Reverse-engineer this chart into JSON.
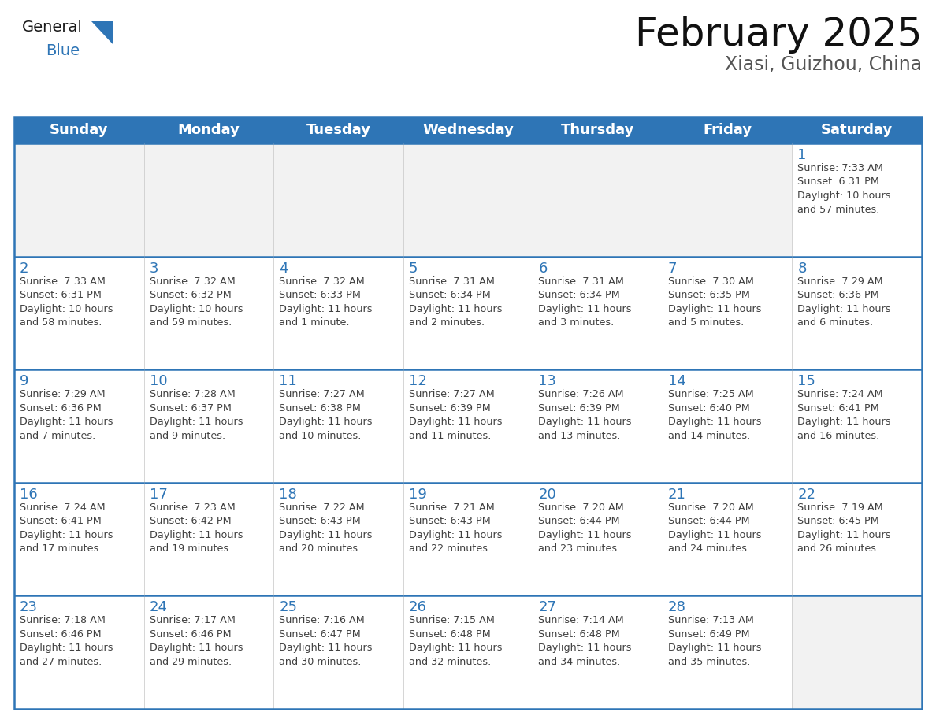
{
  "title": "February 2025",
  "subtitle": "Xiasi, Guizhou, China",
  "header_color": "#2E75B6",
  "header_text_color": "#FFFFFF",
  "cell_bg_color": "#FFFFFF",
  "cell_empty_bg": "#F2F2F2",
  "border_color": "#2E75B6",
  "day_number_color": "#2E75B6",
  "cell_text_color": "#404040",
  "background_color": "#FFFFFF",
  "days_of_week": [
    "Sunday",
    "Monday",
    "Tuesday",
    "Wednesday",
    "Thursday",
    "Friday",
    "Saturday"
  ],
  "weeks": [
    [
      {
        "day": "",
        "info": ""
      },
      {
        "day": "",
        "info": ""
      },
      {
        "day": "",
        "info": ""
      },
      {
        "day": "",
        "info": ""
      },
      {
        "day": "",
        "info": ""
      },
      {
        "day": "",
        "info": ""
      },
      {
        "day": "1",
        "info": "Sunrise: 7:33 AM\nSunset: 6:31 PM\nDaylight: 10 hours\nand 57 minutes."
      }
    ],
    [
      {
        "day": "2",
        "info": "Sunrise: 7:33 AM\nSunset: 6:31 PM\nDaylight: 10 hours\nand 58 minutes."
      },
      {
        "day": "3",
        "info": "Sunrise: 7:32 AM\nSunset: 6:32 PM\nDaylight: 10 hours\nand 59 minutes."
      },
      {
        "day": "4",
        "info": "Sunrise: 7:32 AM\nSunset: 6:33 PM\nDaylight: 11 hours\nand 1 minute."
      },
      {
        "day": "5",
        "info": "Sunrise: 7:31 AM\nSunset: 6:34 PM\nDaylight: 11 hours\nand 2 minutes."
      },
      {
        "day": "6",
        "info": "Sunrise: 7:31 AM\nSunset: 6:34 PM\nDaylight: 11 hours\nand 3 minutes."
      },
      {
        "day": "7",
        "info": "Sunrise: 7:30 AM\nSunset: 6:35 PM\nDaylight: 11 hours\nand 5 minutes."
      },
      {
        "day": "8",
        "info": "Sunrise: 7:29 AM\nSunset: 6:36 PM\nDaylight: 11 hours\nand 6 minutes."
      }
    ],
    [
      {
        "day": "9",
        "info": "Sunrise: 7:29 AM\nSunset: 6:36 PM\nDaylight: 11 hours\nand 7 minutes."
      },
      {
        "day": "10",
        "info": "Sunrise: 7:28 AM\nSunset: 6:37 PM\nDaylight: 11 hours\nand 9 minutes."
      },
      {
        "day": "11",
        "info": "Sunrise: 7:27 AM\nSunset: 6:38 PM\nDaylight: 11 hours\nand 10 minutes."
      },
      {
        "day": "12",
        "info": "Sunrise: 7:27 AM\nSunset: 6:39 PM\nDaylight: 11 hours\nand 11 minutes."
      },
      {
        "day": "13",
        "info": "Sunrise: 7:26 AM\nSunset: 6:39 PM\nDaylight: 11 hours\nand 13 minutes."
      },
      {
        "day": "14",
        "info": "Sunrise: 7:25 AM\nSunset: 6:40 PM\nDaylight: 11 hours\nand 14 minutes."
      },
      {
        "day": "15",
        "info": "Sunrise: 7:24 AM\nSunset: 6:41 PM\nDaylight: 11 hours\nand 16 minutes."
      }
    ],
    [
      {
        "day": "16",
        "info": "Sunrise: 7:24 AM\nSunset: 6:41 PM\nDaylight: 11 hours\nand 17 minutes."
      },
      {
        "day": "17",
        "info": "Sunrise: 7:23 AM\nSunset: 6:42 PM\nDaylight: 11 hours\nand 19 minutes."
      },
      {
        "day": "18",
        "info": "Sunrise: 7:22 AM\nSunset: 6:43 PM\nDaylight: 11 hours\nand 20 minutes."
      },
      {
        "day": "19",
        "info": "Sunrise: 7:21 AM\nSunset: 6:43 PM\nDaylight: 11 hours\nand 22 minutes."
      },
      {
        "day": "20",
        "info": "Sunrise: 7:20 AM\nSunset: 6:44 PM\nDaylight: 11 hours\nand 23 minutes."
      },
      {
        "day": "21",
        "info": "Sunrise: 7:20 AM\nSunset: 6:44 PM\nDaylight: 11 hours\nand 24 minutes."
      },
      {
        "day": "22",
        "info": "Sunrise: 7:19 AM\nSunset: 6:45 PM\nDaylight: 11 hours\nand 26 minutes."
      }
    ],
    [
      {
        "day": "23",
        "info": "Sunrise: 7:18 AM\nSunset: 6:46 PM\nDaylight: 11 hours\nand 27 minutes."
      },
      {
        "day": "24",
        "info": "Sunrise: 7:17 AM\nSunset: 6:46 PM\nDaylight: 11 hours\nand 29 minutes."
      },
      {
        "day": "25",
        "info": "Sunrise: 7:16 AM\nSunset: 6:47 PM\nDaylight: 11 hours\nand 30 minutes."
      },
      {
        "day": "26",
        "info": "Sunrise: 7:15 AM\nSunset: 6:48 PM\nDaylight: 11 hours\nand 32 minutes."
      },
      {
        "day": "27",
        "info": "Sunrise: 7:14 AM\nSunset: 6:48 PM\nDaylight: 11 hours\nand 34 minutes."
      },
      {
        "day": "28",
        "info": "Sunrise: 7:13 AM\nSunset: 6:49 PM\nDaylight: 11 hours\nand 35 minutes."
      },
      {
        "day": "",
        "info": ""
      }
    ]
  ],
  "logo_general_color": "#1a1a1a",
  "logo_blue_color": "#2E75B6",
  "title_fontsize": 36,
  "subtitle_fontsize": 17,
  "header_fontsize": 13,
  "day_number_fontsize": 13,
  "cell_text_fontsize": 9.2
}
